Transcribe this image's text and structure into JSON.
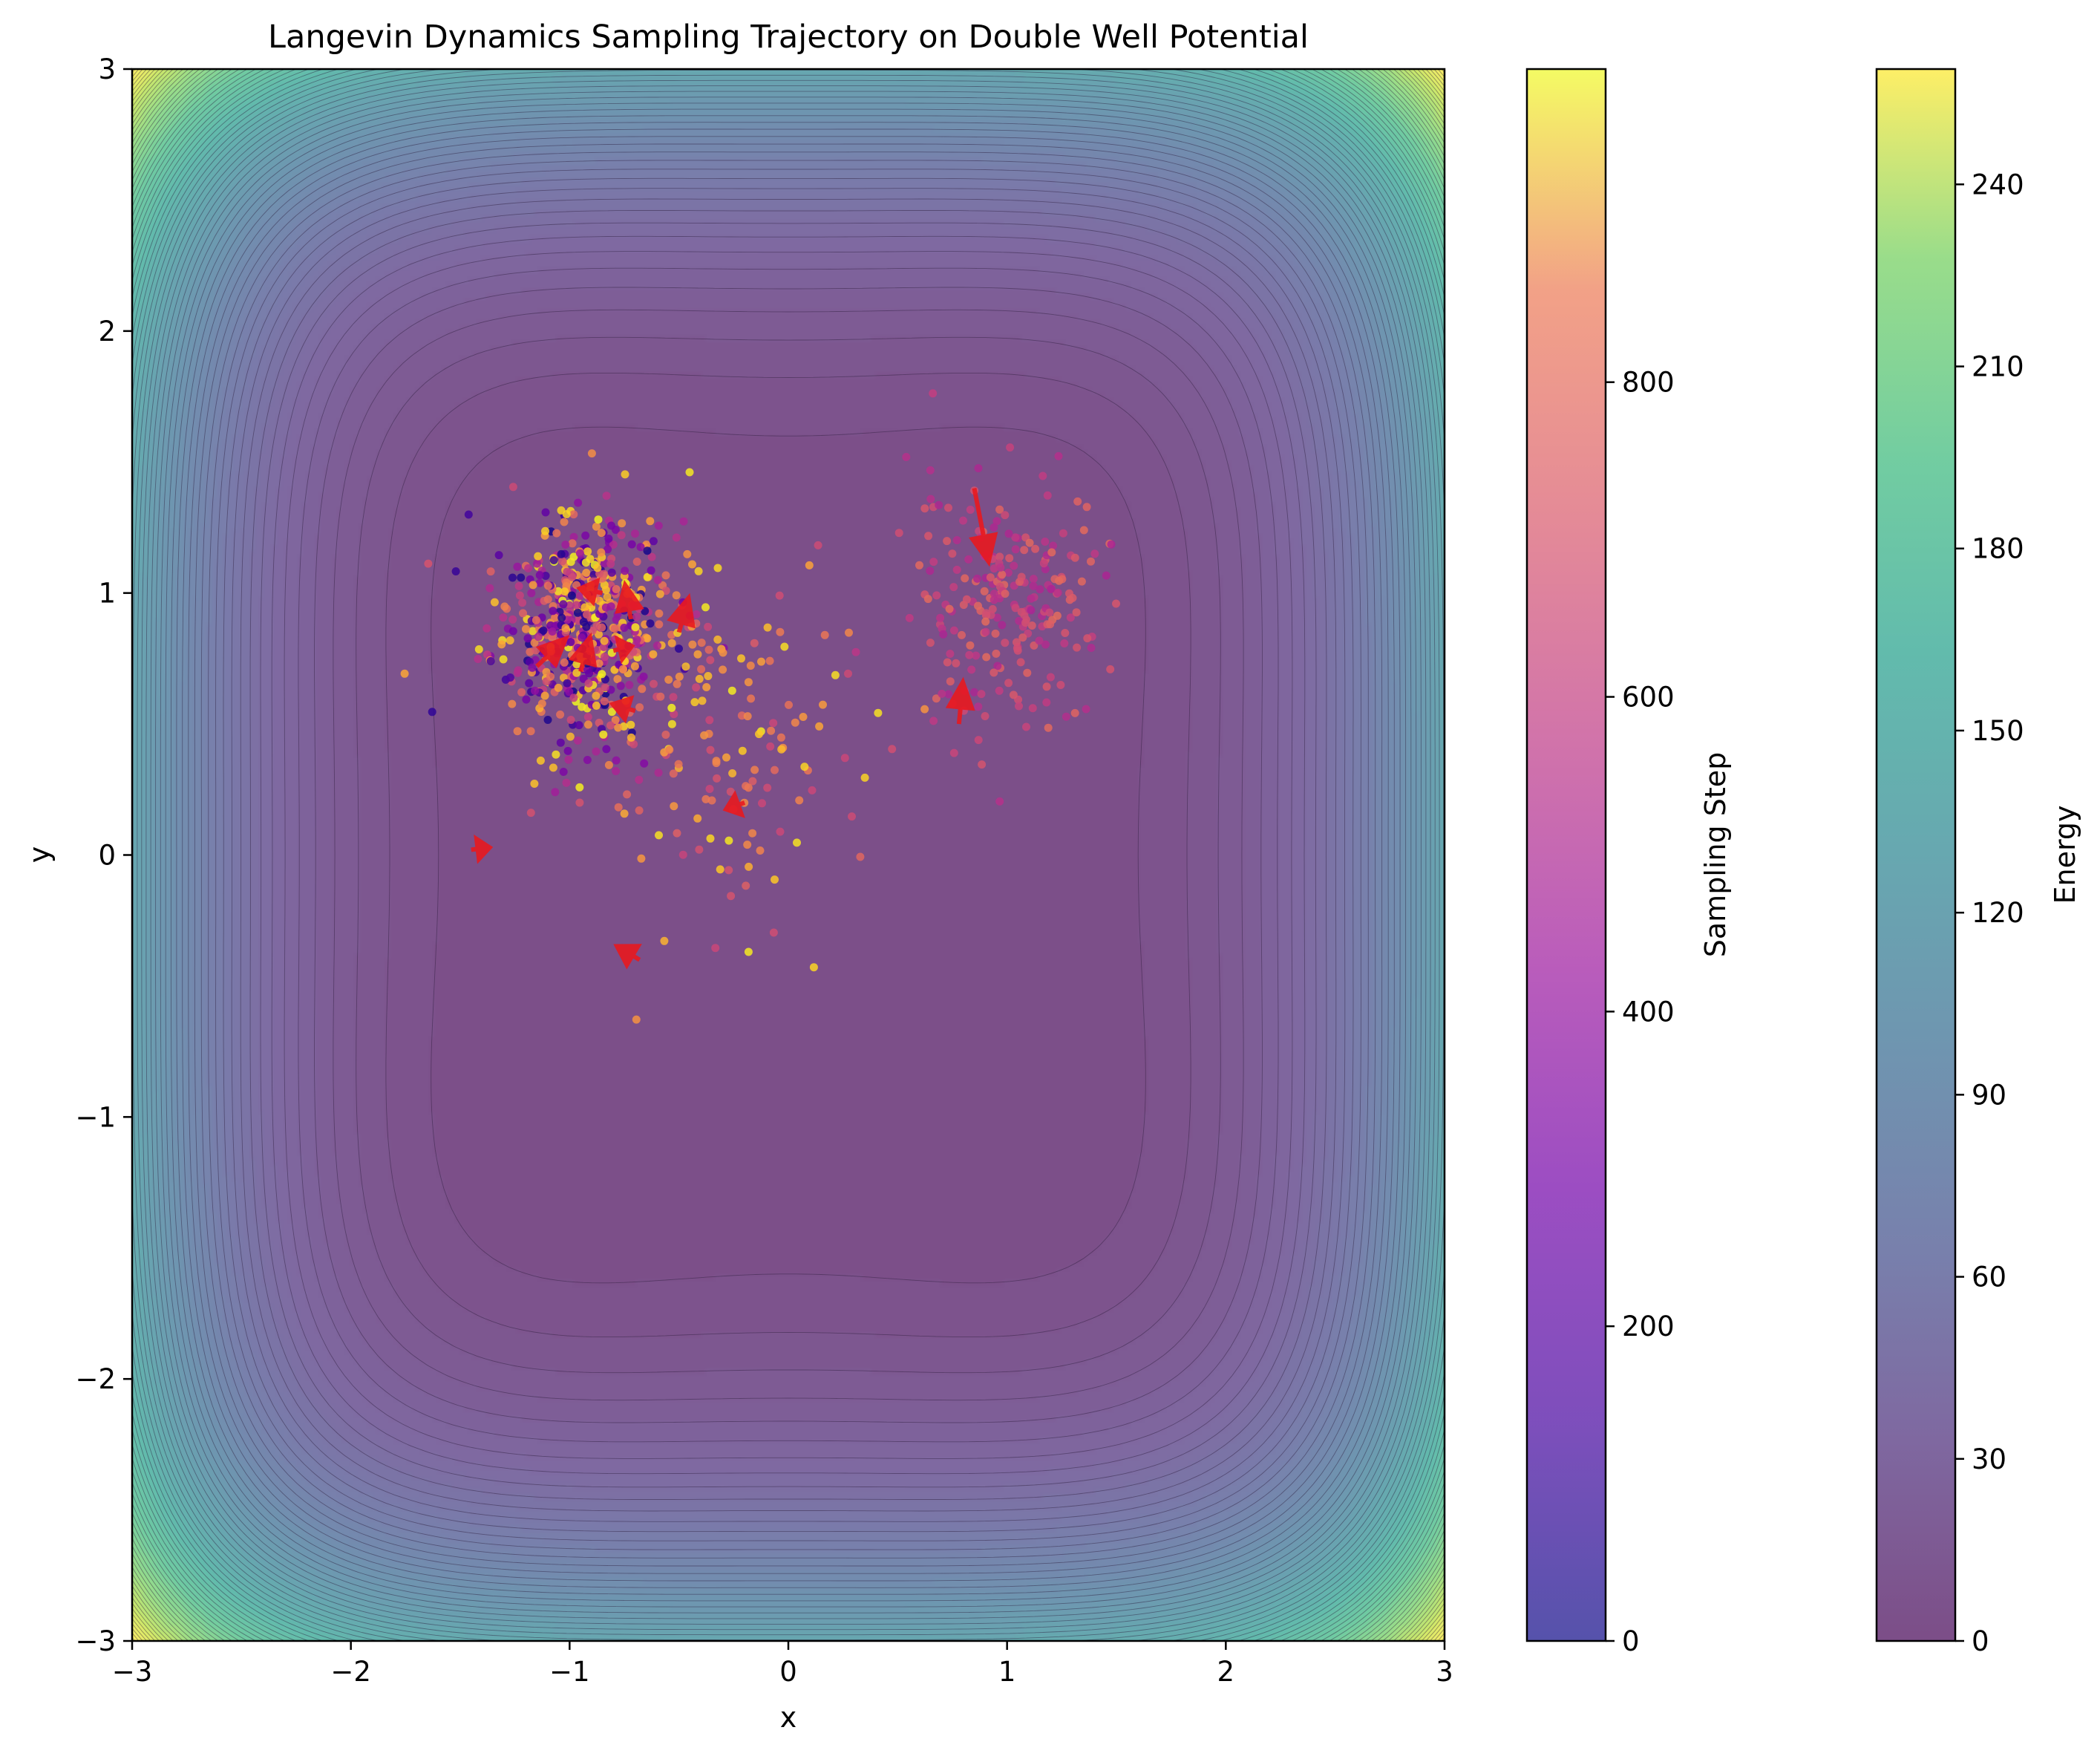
{
  "chart_data": {
    "type": "scatter",
    "title": "Langevin Dynamics Sampling Trajectory on Double Well Potential",
    "xlabel": "x",
    "ylabel": "y",
    "xlim": [
      -3,
      3
    ],
    "ylim": [
      -3,
      3
    ],
    "xticks": [
      -3,
      -2,
      -1,
      0,
      1,
      2,
      3
    ],
    "yticks": [
      -3,
      -2,
      -1,
      0,
      1,
      2,
      3
    ],
    "background": {
      "type": "filled-contour",
      "label": "Energy",
      "colormap": "viridis",
      "alpha": 0.7,
      "range": [
        0,
        259
      ],
      "ticks": [
        0,
        30,
        60,
        90,
        120,
        150,
        180,
        210,
        240
      ],
      "contour_levels": [
        4,
        8,
        12,
        16,
        20,
        24,
        28,
        32,
        36,
        40,
        44,
        48,
        52,
        56,
        60,
        64,
        68,
        72,
        76,
        80,
        84,
        88,
        92,
        96,
        100,
        104,
        108,
        112,
        116,
        120,
        124,
        128,
        132,
        136,
        140,
        144,
        148,
        152,
        156,
        160,
        164,
        168,
        172,
        176,
        180,
        184,
        188,
        192,
        196,
        200,
        204,
        208,
        212,
        216,
        220,
        224,
        228,
        232,
        236,
        240,
        244,
        248,
        252,
        256
      ]
    },
    "samples_colorbar": {
      "label": "Sampling Step",
      "colormap": "plasma",
      "range": [
        0,
        999
      ],
      "ticks": [
        0,
        200,
        400,
        600,
        800
      ]
    },
    "samples": {
      "count": 1000,
      "clusters": [
        {
          "center": [
            -0.95,
            0.87
          ],
          "spread": 0.2,
          "steps": [
            0,
            1000
          ],
          "share": 0.62
        },
        {
          "center": [
            1.0,
            0.95
          ],
          "spread": 0.22,
          "steps": [
            380,
            620
          ],
          "share": 0.23
        },
        {
          "center": [
            -0.25,
            0.45
          ],
          "spread": 0.35,
          "steps": [
            480,
            980
          ],
          "share": 0.15
        }
      ]
    },
    "arrows": [
      {
        "x": -1.45,
        "y": 0.02,
        "dx": 0.1,
        "dy": 0.01
      },
      {
        "x": -1.15,
        "y": 0.72,
        "dx": 0.15,
        "dy": 0.12
      },
      {
        "x": -0.95,
        "y": 0.7,
        "dx": 0.05,
        "dy": 0.15
      },
      {
        "x": -0.72,
        "y": 0.9,
        "dx": -0.03,
        "dy": 0.15
      },
      {
        "x": -0.5,
        "y": 0.85,
        "dx": 0.05,
        "dy": 0.15
      },
      {
        "x": -0.85,
        "y": 1.0,
        "dx": -0.12,
        "dy": 0.02
      },
      {
        "x": -0.7,
        "y": 0.55,
        "dx": -0.12,
        "dy": 0.03
      },
      {
        "x": -0.2,
        "y": 0.2,
        "dx": -0.1,
        "dy": -0.03
      },
      {
        "x": -0.68,
        "y": -0.4,
        "dx": -0.12,
        "dy": 0.06
      },
      {
        "x": 0.85,
        "y": 1.4,
        "dx": 0.07,
        "dy": -0.3
      },
      {
        "x": 0.78,
        "y": 0.5,
        "dx": 0.02,
        "dy": 0.18
      },
      {
        "x": -0.8,
        "y": 0.78,
        "dx": 0.1,
        "dy": 0.02
      }
    ]
  }
}
